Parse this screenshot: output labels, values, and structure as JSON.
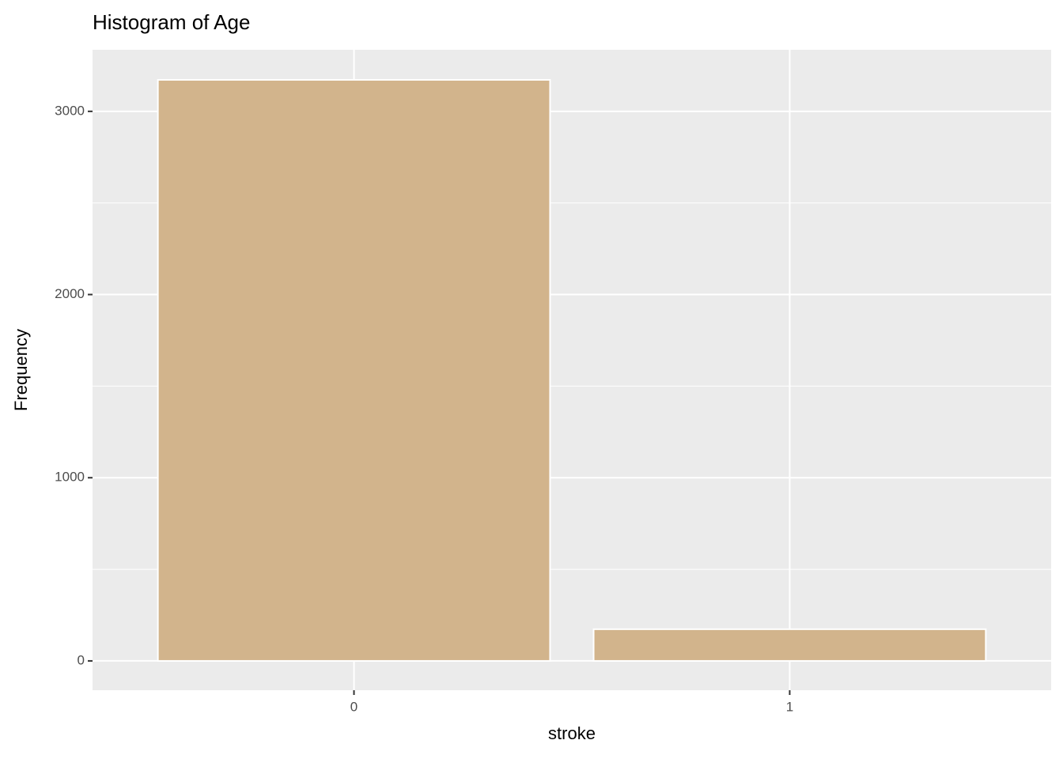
{
  "chart_data": {
    "type": "bar",
    "title": "Histogram of Age",
    "x_label": "stroke",
    "y_label": "Frequency",
    "categories": [
      "0",
      "1"
    ],
    "values": [
      3172,
      173
    ],
    "color": "#d2b48c",
    "ylim": [
      -160,
      3336
    ],
    "yticks": [
      0,
      1000,
      2000,
      3000
    ],
    "grid": true,
    "minor_grid": true
  }
}
